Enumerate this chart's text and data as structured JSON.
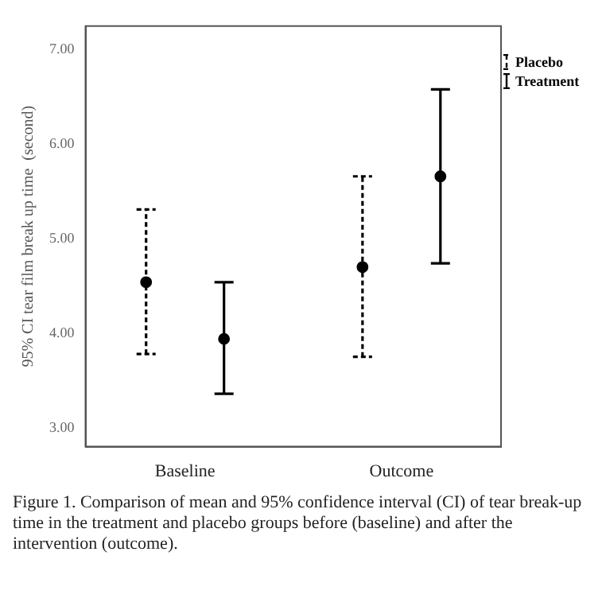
{
  "chart_data": {
    "type": "scatter",
    "ylabel": "95% CI tear film break up time  (second)",
    "categories": [
      "Baseline",
      "Outcome"
    ],
    "series": [
      {
        "name": "Placebo",
        "color": "#000000",
        "values": [
          4.54,
          4.7
        ],
        "errors": [
          [
            3.78,
            5.31
          ],
          [
            3.75,
            5.66
          ]
        ],
        "line_style": "dashed"
      },
      {
        "name": "Treatment",
        "color": "#000000",
        "values": [
          3.94,
          5.66
        ],
        "errors": [
          [
            3.36,
            4.54
          ],
          [
            4.74,
            6.58
          ]
        ],
        "line_style": "solid"
      }
    ],
    "ylim": [
      2.8,
      7.25
    ],
    "yticks": [
      {
        "value": 3,
        "label": "3.00"
      },
      {
        "value": 4,
        "label": "4.00"
      },
      {
        "value": 5,
        "label": "5.00"
      },
      {
        "value": 6,
        "label": "6.00"
      },
      {
        "value": 7,
        "label": "7.00"
      }
    ],
    "grid": false,
    "legend": "top right",
    "marker": "circle",
    "annotations": [
      "Figure 1. Comparison of mean and 95% confidence interval (CI) of tear break-up time in the treatment and placebo groups before (baseline) and after the intervention (outcome)."
    ]
  }
}
